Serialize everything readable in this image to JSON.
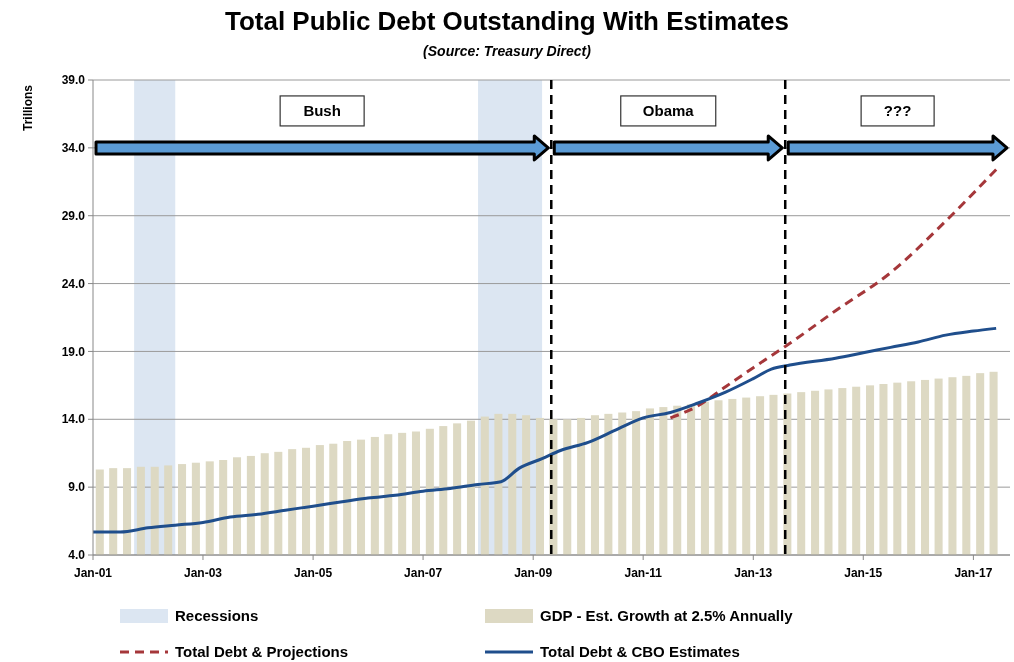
{
  "chart_data": {
    "type": "line",
    "title": "Total Public Debt Outstanding With Estimates",
    "subtitle": "(Source:  Treasury Direct)",
    "ylabel": "Trillions",
    "xlim": [
      "2001-01",
      "2017-09"
    ],
    "ylim": [
      4,
      39
    ],
    "xticks": [
      {
        "value": "2001-01",
        "label": "Jan-01"
      },
      {
        "value": "2003-01",
        "label": "Jan-03"
      },
      {
        "value": "2005-01",
        "label": "Jan-05"
      },
      {
        "value": "2007-01",
        "label": "Jan-07"
      },
      {
        "value": "2009-01",
        "label": "Jan-09"
      },
      {
        "value": "2011-01",
        "label": "Jan-11"
      },
      {
        "value": "2013-01",
        "label": "Jan-13"
      },
      {
        "value": "2015-01",
        "label": "Jan-15"
      },
      {
        "value": "2017-01",
        "label": "Jan-17"
      }
    ],
    "yticks": [
      {
        "value": 4,
        "label": "4.0"
      },
      {
        "value": 9,
        "label": "9.0"
      },
      {
        "value": 14,
        "label": "14.0"
      },
      {
        "value": 19,
        "label": "19.0"
      },
      {
        "value": 24,
        "label": "24.0"
      },
      {
        "value": 29,
        "label": "29.0"
      },
      {
        "value": 34,
        "label": "34.0"
      },
      {
        "value": 39,
        "label": "39.0"
      }
    ],
    "grid": "y",
    "legend": "bottom",
    "bands": [
      {
        "axis": "x",
        "from": "2001-10",
        "to": "2002-07",
        "label": "Recessions",
        "color": "#dce6f2"
      },
      {
        "axis": "x",
        "from": "2008-01",
        "to": "2009-03",
        "color": "#dce6f2"
      }
    ],
    "ref_lines": [
      {
        "axis": "x",
        "value": "2009-05",
        "color": "#000000",
        "line_style": "dashed"
      },
      {
        "axis": "x",
        "value": "2013-08",
        "color": "#000000",
        "line_style": "dashed"
      }
    ],
    "annotations": [
      "Bush",
      "Obama",
      "???"
    ],
    "series": [
      {
        "name": "GDP - Est. Growth at 2.5% Annually",
        "type": "bar",
        "color": "#ddd9c3",
        "x": [
          "2001-02-15",
          "2001-05-15",
          "2001-08-15",
          "2001-11-15",
          "2002-02-15",
          "2002-05-15",
          "2002-08-15",
          "2002-11-15",
          "2003-02-15",
          "2003-05-15",
          "2003-08-15",
          "2003-11-15",
          "2004-02-15",
          "2004-05-15",
          "2004-08-15",
          "2004-11-15",
          "2005-02-15",
          "2005-05-15",
          "2005-08-15",
          "2005-11-15",
          "2006-02-15",
          "2006-05-15",
          "2006-08-15",
          "2006-11-15",
          "2007-02-15",
          "2007-05-15",
          "2007-08-15",
          "2007-11-15",
          "2008-02-15",
          "2008-05-15",
          "2008-08-15",
          "2008-11-15",
          "2009-02-15",
          "2009-05-15",
          "2009-08-15",
          "2009-11-15",
          "2010-02-15",
          "2010-05-15",
          "2010-08-15",
          "2010-11-15",
          "2011-02-15",
          "2011-05-15",
          "2011-08-15",
          "2011-11-15",
          "2012-02-15",
          "2012-05-15",
          "2012-08-15",
          "2012-11-15",
          "2013-02-15",
          "2013-05-15",
          "2013-08-15",
          "2013-11-15",
          "2014-02-15",
          "2014-05-15",
          "2014-08-15",
          "2014-11-15",
          "2015-02-15",
          "2015-05-15",
          "2015-08-15",
          "2015-11-15",
          "2016-02-15",
          "2016-05-15",
          "2016-08-15",
          "2016-11-15",
          "2017-02-15",
          "2017-05-15"
        ],
        "values": [
          10.3,
          10.4,
          10.4,
          10.5,
          10.5,
          10.6,
          10.7,
          10.8,
          10.9,
          11.0,
          11.2,
          11.3,
          11.5,
          11.6,
          11.8,
          11.9,
          12.1,
          12.2,
          12.4,
          12.5,
          12.7,
          12.9,
          13.0,
          13.1,
          13.3,
          13.5,
          13.7,
          13.9,
          14.2,
          14.4,
          14.4,
          14.3,
          14.1,
          14.0,
          14.0,
          14.1,
          14.3,
          14.4,
          14.5,
          14.6,
          14.8,
          14.9,
          15.0,
          15.1,
          15.3,
          15.4,
          15.5,
          15.6,
          15.7,
          15.8,
          15.9,
          16.0,
          16.1,
          16.2,
          16.3,
          16.4,
          16.5,
          16.6,
          16.7,
          16.8,
          16.9,
          17.0,
          17.1,
          17.2,
          17.4,
          17.5
        ]
      },
      {
        "name": "Total Debt & Projections",
        "line_style": "dashed",
        "color": "#a5373a",
        "x": [
          "2011-07",
          "2012-01",
          "2012-07",
          "2013-01",
          "2013-09",
          "2014-07",
          "2015-07",
          "2016-07",
          "2017-06"
        ],
        "values": [
          14.1,
          15.0,
          16.4,
          17.8,
          19.6,
          22.0,
          24.8,
          28.6,
          32.4
        ]
      },
      {
        "name": "Total Debt & CBO Estimates",
        "line_style": "solid",
        "color": "#1f4e8c",
        "x": [
          "2001-01",
          "2001-07",
          "2002-01",
          "2002-07",
          "2003-01",
          "2003-07",
          "2004-01",
          "2004-07",
          "2005-01",
          "2005-07",
          "2006-01",
          "2006-07",
          "2007-01",
          "2007-07",
          "2008-01",
          "2008-06",
          "2008-10",
          "2009-03",
          "2009-07",
          "2010-01",
          "2010-07",
          "2011-01",
          "2011-07",
          "2012-01",
          "2012-07",
          "2013-01",
          "2013-05",
          "2013-09",
          "2014-07",
          "2015-01",
          "2015-07",
          "2016-01",
          "2016-07",
          "2017-01",
          "2017-06"
        ],
        "values": [
          5.7,
          5.7,
          6.0,
          6.2,
          6.4,
          6.8,
          7.0,
          7.3,
          7.6,
          7.9,
          8.2,
          8.4,
          8.7,
          8.9,
          9.2,
          9.4,
          10.4,
          11.1,
          11.7,
          12.3,
          13.2,
          14.1,
          14.5,
          15.2,
          16.0,
          17.0,
          17.7,
          18.0,
          18.5,
          18.9,
          19.3,
          19.7,
          20.2,
          20.5,
          20.7
        ]
      }
    ]
  }
}
